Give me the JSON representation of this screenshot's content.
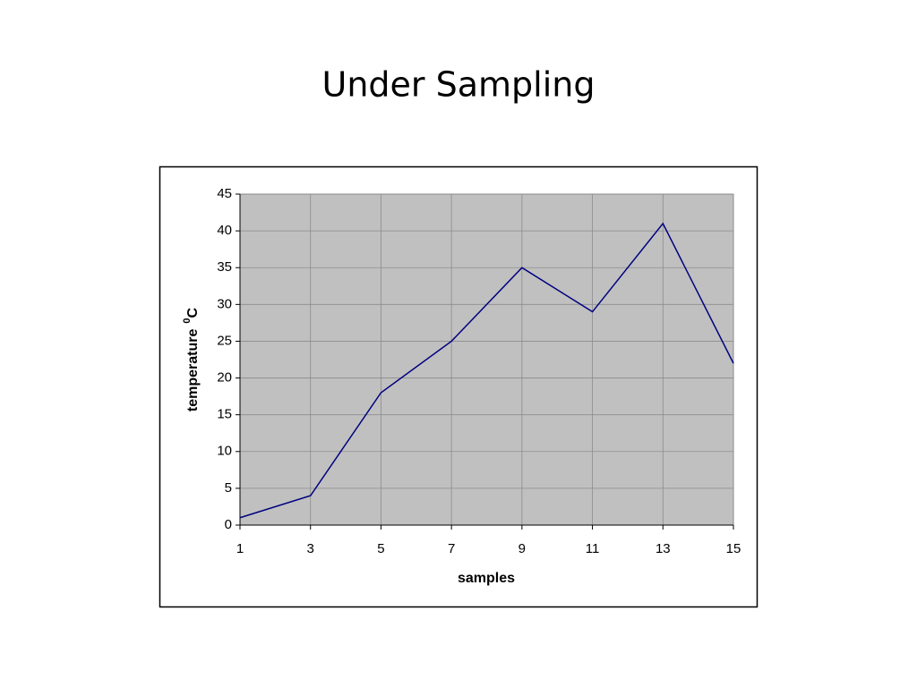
{
  "chart_data": {
    "type": "line",
    "title": "Under Sampling",
    "xlabel": "samples",
    "ylabel": "temperature",
    "ylabel_sup": "0",
    "ylabel_unit": "C",
    "x": [
      1,
      3,
      5,
      7,
      9,
      11,
      13,
      15
    ],
    "series": [
      {
        "name": "temperature",
        "color": "#000080",
        "values": [
          1,
          4,
          18,
          25,
          35,
          29,
          41,
          22
        ]
      }
    ],
    "xlim": [
      1,
      15
    ],
    "xticks": [
      1,
      3,
      5,
      7,
      9,
      11,
      13,
      15
    ],
    "ylim": [
      0,
      45
    ],
    "yticks": [
      0,
      5,
      10,
      15,
      20,
      25,
      30,
      35,
      40,
      45
    ],
    "grid": true,
    "plot_background": "#c0c0c0"
  }
}
